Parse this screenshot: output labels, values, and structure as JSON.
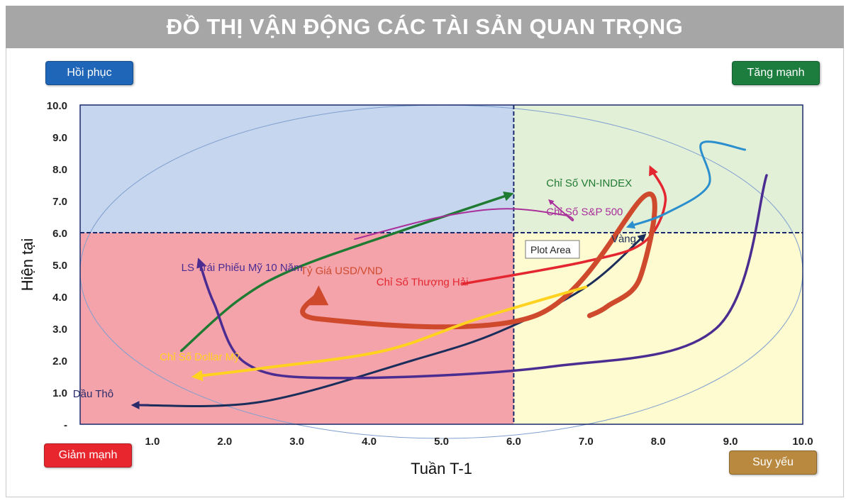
{
  "chart_data": {
    "type": "line",
    "title": "ĐỒ THỊ VẬN ĐỘNG CÁC TÀI SẢN QUAN TRỌNG",
    "xlabel": "Tuần T-1",
    "ylabel": "Hiện tại",
    "xlim": [
      0,
      10
    ],
    "ylim": [
      0,
      10
    ],
    "x_ticks": [
      "1.0",
      "2.0",
      "3.0",
      "4.0",
      "5.0",
      "6.0",
      "7.0",
      "8.0",
      "9.0",
      "10.0"
    ],
    "y_ticks": [
      "-",
      "1.0",
      "2.0",
      "3.0",
      "4.0",
      "5.0",
      "6.0",
      "7.0",
      "8.0",
      "9.0",
      "10.0"
    ],
    "quadrant_split": {
      "x": 6,
      "y": 6
    },
    "quadrants": [
      {
        "label": "Hồi phục",
        "position": "top-left",
        "color": "#1f66b8",
        "fill": "#c5d6ee"
      },
      {
        "label": "Tăng mạnh",
        "position": "top-right",
        "color": "#1c7d3f",
        "fill": "#e3f0d8"
      },
      {
        "label": "Giảm mạnh",
        "position": "bottom-left",
        "color": "#e8262d",
        "fill": "#f4a3ab"
      },
      {
        "label": "Suy yếu",
        "position": "bottom-right",
        "color": "#b8893f",
        "fill": "#fdfbcf"
      }
    ],
    "tooltip": "Plot Area",
    "series": [
      {
        "name": "Chỉ Số VN-INDEX",
        "color": "#1f7a32",
        "label_at": [
          6.45,
          7.45
        ],
        "points": [
          [
            1.4,
            2.3
          ],
          [
            2.2,
            3.9
          ],
          [
            3.0,
            4.9
          ],
          [
            4.5,
            6.1
          ],
          [
            5.95,
            7.2
          ]
        ]
      },
      {
        "name": "Chỉ Số S&P 500",
        "color": "#a9309a",
        "label_at": [
          6.45,
          6.55
        ],
        "points": [
          [
            3.8,
            5.8
          ],
          [
            5.0,
            6.5
          ],
          [
            5.9,
            6.75
          ],
          [
            6.7,
            6.55
          ],
          [
            6.8,
            6.4
          ],
          [
            6.5,
            7.0
          ]
        ]
      },
      {
        "name": "Vàng",
        "color": "#1b2d5a",
        "label_at": [
          7.35,
          5.7
        ],
        "points": [
          [
            0.75,
            0.6
          ],
          [
            2.5,
            0.7
          ],
          [
            4.6,
            2.0
          ],
          [
            5.8,
            2.9
          ],
          [
            7.0,
            4.3
          ],
          [
            7.8,
            5.9
          ]
        ]
      },
      {
        "name": "Chỉ Số Thượng Hải",
        "color": "#e3262f",
        "label_at": [
          4.1,
          4.35
        ],
        "points": [
          [
            5.3,
            4.4
          ],
          [
            7.0,
            5.1
          ],
          [
            7.8,
            5.7
          ],
          [
            8.1,
            7.0
          ],
          [
            7.9,
            8.0
          ]
        ]
      },
      {
        "name": "Tỷ Giá USD/VND",
        "color": "#cf4a2d",
        "label_at": [
          3.05,
          4.7
        ],
        "points": [
          [
            7.05,
            3.4
          ],
          [
            7.3,
            3.7
          ],
          [
            7.75,
            4.6
          ],
          [
            7.85,
            7.2
          ],
          [
            6.3,
            3.4
          ],
          [
            3.3,
            3.3
          ],
          [
            3.3,
            4.1
          ]
        ]
      },
      {
        "name": "LS Trái Phiếu Mỹ 10 Năm",
        "color": "#4b2d92",
        "label_at": [
          1.4,
          4.8
        ],
        "points": [
          [
            9.5,
            7.8
          ],
          [
            8.8,
            3.0
          ],
          [
            6.5,
            1.8
          ],
          [
            3.5,
            1.45
          ],
          [
            2.3,
            1.9
          ],
          [
            1.85,
            3.8
          ],
          [
            1.65,
            5.1
          ]
        ]
      },
      {
        "name": "Chỉ Số Dollar Mỹ",
        "color": "#ffd21f",
        "label_at": [
          1.1,
          2.0
        ],
        "points": [
          [
            7.0,
            4.3
          ],
          [
            5.5,
            3.3
          ],
          [
            4.2,
            2.3
          ],
          [
            2.5,
            1.75
          ],
          [
            1.6,
            1.5
          ]
        ]
      },
      {
        "name": "",
        "color": "#2b8fce",
        "label_at": [
          0,
          0
        ],
        "points": [
          [
            9.2,
            8.6
          ],
          [
            8.6,
            8.8
          ],
          [
            8.7,
            7.5
          ],
          [
            8.1,
            6.6
          ],
          [
            7.6,
            6.2
          ]
        ]
      },
      {
        "name": "Dầu Thô",
        "color": "#2b2b6b",
        "label_at": [
          -0.1,
          0.85
        ],
        "points": []
      }
    ]
  }
}
